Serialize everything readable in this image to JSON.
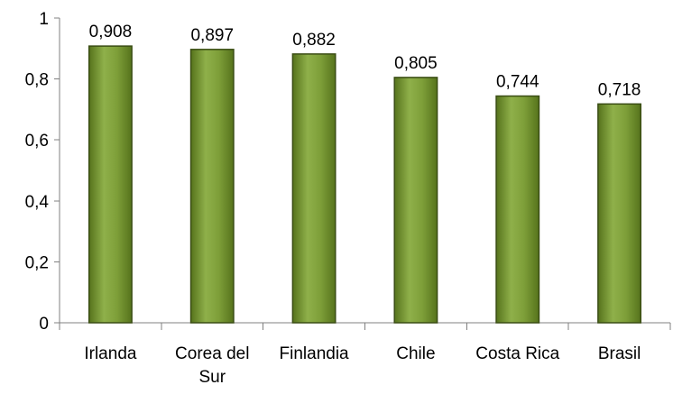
{
  "chart_data": {
    "type": "bar",
    "title": "",
    "xlabel": "",
    "ylabel": "",
    "categories": [
      "Irlanda",
      "Corea del Sur",
      "Finlandia",
      "Chile",
      "Costa Rica",
      "Brasil"
    ],
    "category_lines": [
      [
        "Irlanda"
      ],
      [
        "Corea del",
        "Sur"
      ],
      [
        "Finlandia"
      ],
      [
        "Chile"
      ],
      [
        "Costa Rica"
      ],
      [
        "Brasil"
      ]
    ],
    "values": [
      0.908,
      0.897,
      0.882,
      0.805,
      0.744,
      0.718
    ],
    "value_labels": [
      "0,908",
      "0,897",
      "0,882",
      "0,805",
      "0,744",
      "0,718"
    ],
    "ylim": [
      0,
      1
    ],
    "yticks": [
      0,
      0.2,
      0.4,
      0.6,
      0.8,
      1
    ],
    "ytick_labels": [
      "0",
      "0,2",
      "0,4",
      "0,6",
      "0,8",
      "1"
    ],
    "grid": false,
    "legend": "none",
    "colors": {
      "bar_top": "#8fb04a",
      "bar_mid": "#6e8f2a",
      "bar_bottom": "#56731c",
      "bar_border": "#3a4d14",
      "axis": "#808080"
    }
  }
}
